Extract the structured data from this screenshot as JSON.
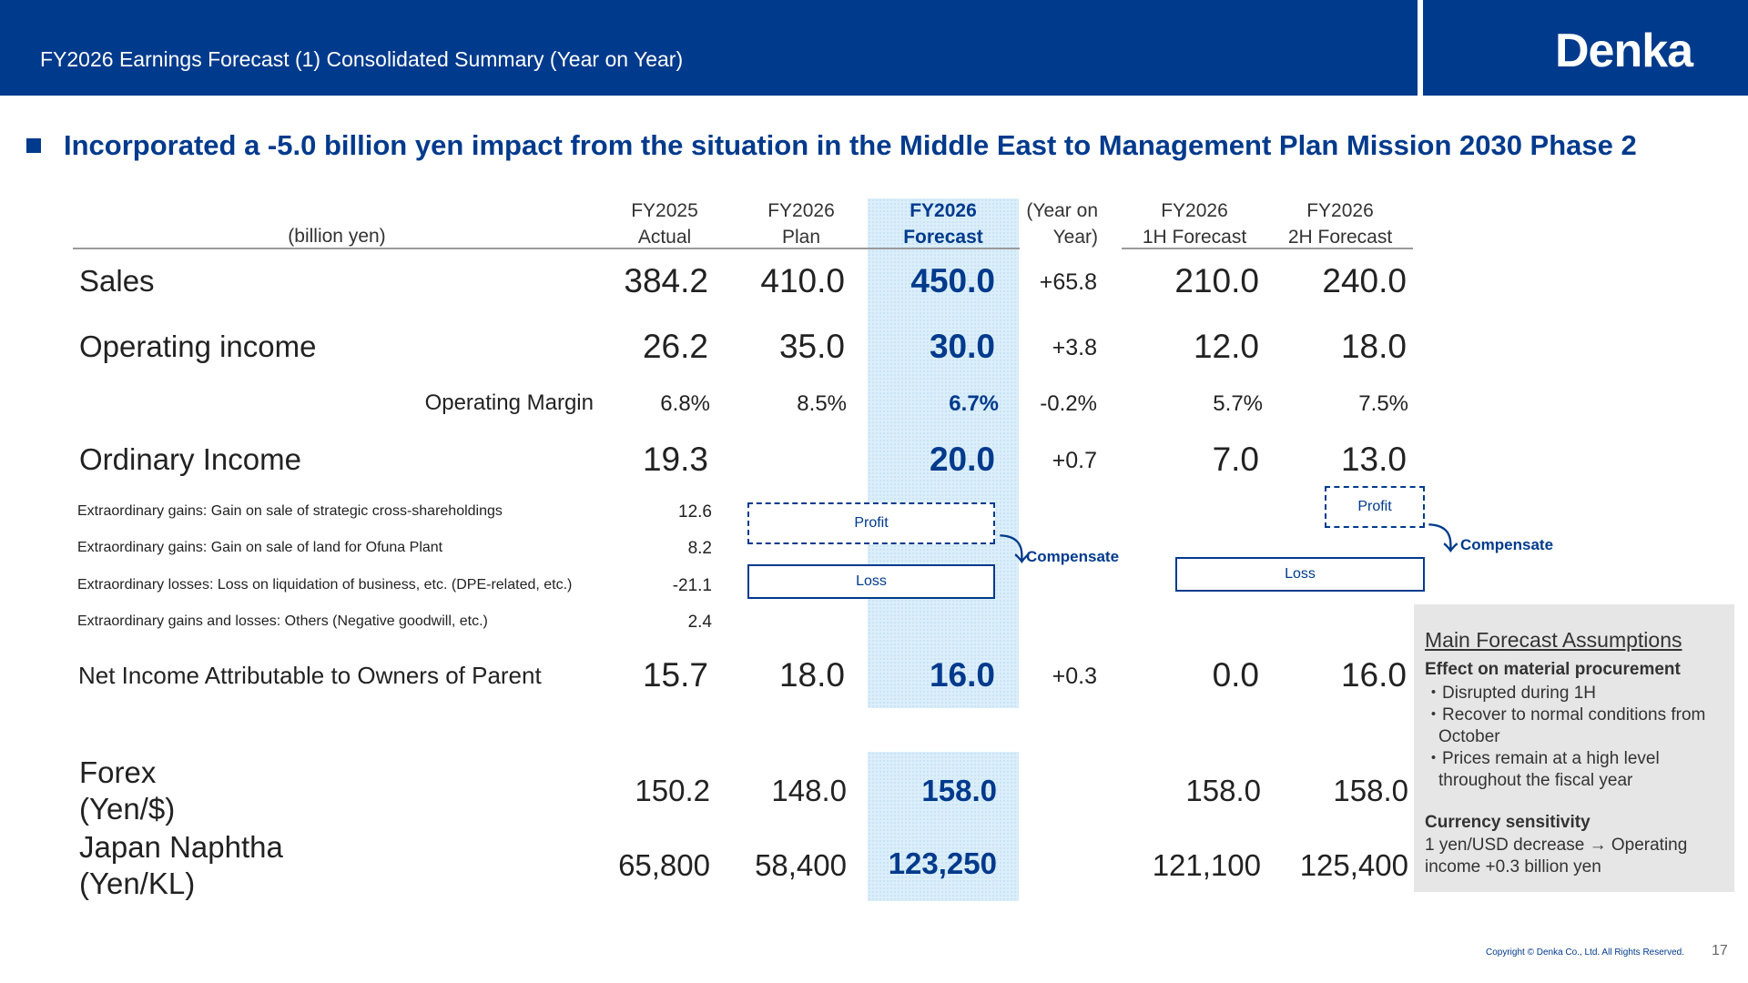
{
  "header": {
    "title": "FY2026 Earnings Forecast (1) Consolidated Summary (Year on Year)",
    "logo": "Denka",
    "accent_color": "#003a8c"
  },
  "headline": "Incorporated a -5.0 billion yen impact from the situation in the Middle East to Management Plan Mission 2030 Phase 2",
  "table": {
    "unit_label": "(billion yen)",
    "columns": [
      {
        "line1": "FY2025",
        "line2": "Actual"
      },
      {
        "line1": "FY2026",
        "line2": "Plan"
      },
      {
        "line1": "FY2026",
        "line2": "Forecast"
      },
      {
        "line1": "(Year on",
        "line2": "Year)"
      },
      {
        "line1": "FY2026",
        "line2": "1H Forecast"
      },
      {
        "line1": "FY2026",
        "line2": "2H Forecast"
      }
    ],
    "rows": {
      "sales": {
        "label": "Sales",
        "fy2025": "384.2",
        "plan": "410.0",
        "forecast": "450.0",
        "yoy": "+65.8",
        "h1": "210.0",
        "h2": "240.0"
      },
      "op_income": {
        "label": "Operating income",
        "fy2025": "26.2",
        "plan": "35.0",
        "forecast": "30.0",
        "yoy": "+3.8",
        "h1": "12.0",
        "h2": "18.0"
      },
      "op_margin": {
        "label": "Operating Margin",
        "fy2025": "6.8%",
        "plan": "8.5%",
        "forecast": "6.7%",
        "yoy": "-0.2%",
        "h1": "5.7%",
        "h2": "7.5%"
      },
      "ordinary": {
        "label": "Ordinary Income",
        "fy2025": "19.3",
        "forecast": "20.0",
        "yoy": "+0.7",
        "h1": "7.0",
        "h2": "13.0"
      },
      "extra": [
        {
          "label": "Extraordinary gains: Gain on sale of strategic cross-shareholdings",
          "value": "12.6"
        },
        {
          "label": "Extraordinary gains: Gain on sale of land for Ofuna Plant",
          "value": "8.2"
        },
        {
          "label": "Extraordinary losses: Loss on liquidation of business, etc. (DPE-related, etc.)",
          "value": "-21.1"
        },
        {
          "label": "Extraordinary gains and losses: Others (Negative goodwill, etc.)",
          "value": "2.4"
        }
      ],
      "net_income": {
        "label": "Net Income Attributable to Owners of Parent",
        "fy2025": "15.7",
        "plan": "18.0",
        "forecast": "16.0",
        "yoy": "+0.3",
        "h1": "0.0",
        "h2": "16.0"
      },
      "forex": {
        "label1": "Forex",
        "label2": "(Yen/$)",
        "fy2025": "150.2",
        "plan": "148.0",
        "forecast": "158.0",
        "h1": "158.0",
        "h2": "158.0"
      },
      "naphtha": {
        "label1": "Japan Naphtha",
        "label2": "(Yen/KL)",
        "fy2025": "65,800",
        "plan": "58,400",
        "forecast": "123,250",
        "h1": "121,100",
        "h2": "125,400"
      }
    }
  },
  "annotations": {
    "profit": "Profit",
    "loss": "Loss",
    "compensate": "Compensate"
  },
  "assumptions": {
    "title": "Main Forecast Assumptions",
    "procurement_heading": "Effect on material procurement",
    "procurement_items": [
      "・Disrupted during 1H",
      "・Recover to normal conditions from October",
      "・Prices remain at a high level throughout the fiscal year"
    ],
    "sensitivity_heading": "Currency sensitivity",
    "sensitivity_text": "1 yen/USD decrease → Operating income +0.3 billion yen"
  },
  "footer": {
    "copyright": "Copyright © Denka Co., Ltd. All Rights Reserved.",
    "page": "17"
  }
}
